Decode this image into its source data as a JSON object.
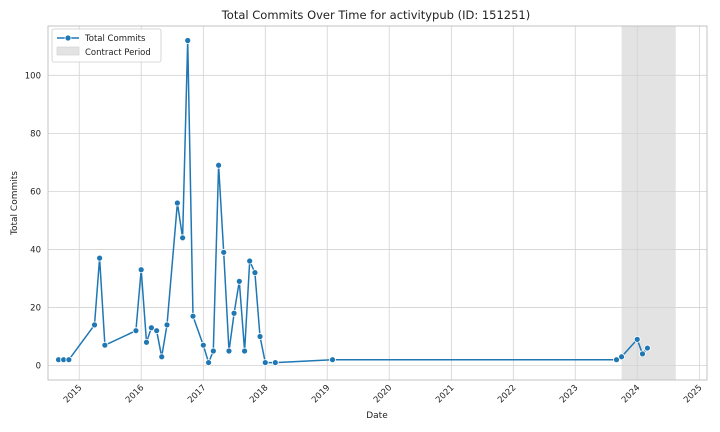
{
  "chart_data": {
    "type": "line",
    "title": "Total Commits Over Time for activitypub (ID: 151251)",
    "xlabel": "Date",
    "ylabel": "Total Commits",
    "xlim": [
      "2014-07-01",
      "2025-02-15"
    ],
    "ylim": [
      -5,
      117
    ],
    "x_ticks": [
      "2015",
      "2016",
      "2017",
      "2018",
      "2019",
      "2020",
      "2021",
      "2022",
      "2023",
      "2024",
      "2025"
    ],
    "y_ticks": [
      0,
      20,
      40,
      60,
      80,
      100
    ],
    "grid": true,
    "legend_position": "top-left",
    "legend": [
      {
        "label": "Total Commits",
        "kind": "line-marker"
      },
      {
        "label": "Contract Period",
        "kind": "patch"
      }
    ],
    "series": [
      {
        "name": "Total Commits",
        "color": "#1f77b4",
        "x": [
          "2014-09-01",
          "2014-10-01",
          "2014-11-01",
          "2015-04-01",
          "2015-05-01",
          "2015-06-01",
          "2015-12-01",
          "2016-01-01",
          "2016-02-01",
          "2016-03-01",
          "2016-04-01",
          "2016-05-01",
          "2016-06-01",
          "2016-08-01",
          "2016-09-01",
          "2016-10-01",
          "2016-11-01",
          "2017-01-01",
          "2017-02-01",
          "2017-03-01",
          "2017-04-01",
          "2017-05-01",
          "2017-06-01",
          "2017-07-01",
          "2017-08-01",
          "2017-09-01",
          "2017-10-01",
          "2017-11-01",
          "2017-12-01",
          "2018-01-01",
          "2018-03-01",
          "2019-02-01",
          "2023-09-01",
          "2023-10-01",
          "2024-01-01",
          "2024-02-01",
          "2024-03-01"
        ],
        "values": [
          2,
          2,
          2,
          14,
          37,
          7,
          12,
          33,
          8,
          13,
          12,
          3,
          14,
          56,
          44,
          112,
          17,
          7,
          1,
          5,
          69,
          39,
          5,
          18,
          29,
          5,
          36,
          32,
          10,
          1,
          1,
          2,
          2,
          3,
          9,
          4,
          6
        ]
      }
    ],
    "shaded_regions": [
      {
        "label": "Contract Period",
        "start": "2023-10-01",
        "end": "2024-08-15",
        "color": "#e3e3e3"
      }
    ]
  }
}
